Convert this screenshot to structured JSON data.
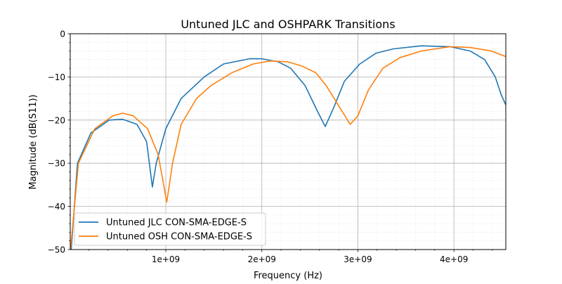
{
  "chart_data": {
    "type": "line",
    "title": "Untuned JLC and OSHPARK Transitions",
    "xlabel": "Frequency (Hz)",
    "ylabel": "Magnitude (dB(S11))",
    "xlim": [
      5000000.0,
      4540000000.0
    ],
    "ylim": [
      -50,
      0
    ],
    "grid": "major and minor",
    "legend_position": "lower-left",
    "x_ticks": [
      1000000000.0,
      2000000000.0,
      3000000000.0,
      4000000000.0
    ],
    "x_tick_labels": [
      "1e+09",
      "2e+09",
      "3e+09",
      "4e+09"
    ],
    "y_ticks": [
      -50,
      -40,
      -30,
      -20,
      -10,
      0
    ],
    "y_tick_labels": [
      "−50",
      "−40",
      "−30",
      "−20",
      "−10",
      "0"
    ],
    "series": [
      {
        "name": "Untuned JLC CON-SMA-EDGE-S",
        "color": "#1f77b4",
        "x": [
          15000000.0,
          80000000.0,
          220000000.0,
          410000000.0,
          550000000.0,
          700000000.0,
          800000000.0,
          860000000.0,
          900000000.0,
          1000000000.0,
          1160000000.0,
          1400000000.0,
          1600000000.0,
          1870000000.0,
          2000000000.0,
          2170000000.0,
          2300000000.0,
          2450000000.0,
          2580000000.0,
          2660000000.0,
          2750000000.0,
          2860000000.0,
          3020000000.0,
          3190000000.0,
          3370000000.0,
          3660000000.0,
          3960000000.0,
          4170000000.0,
          4320000000.0,
          4430000000.0,
          4490000000.0,
          4540000000.0
        ],
        "y": [
          -50,
          -30,
          -23,
          -20,
          -19.8,
          -21,
          -25,
          -35.5,
          -30,
          -22,
          -15,
          -10,
          -7,
          -5.8,
          -5.8,
          -6.5,
          -8,
          -12,
          -18,
          -21.5,
          -17,
          -11,
          -7,
          -4.5,
          -3.5,
          -2.8,
          -3,
          -4,
          -6,
          -10,
          -14,
          -16.5
        ]
      },
      {
        "name": "Untuned OSH CON-SMA-EDGE-S",
        "color": "#ff7f0e",
        "x": [
          8000000.0,
          90000000.0,
          260000000.0,
          450000000.0,
          550000000.0,
          660000000.0,
          810000000.0,
          920000000.0,
          1010000000.0,
          1070000000.0,
          1160000000.0,
          1320000000.0,
          1470000000.0,
          1690000000.0,
          1910000000.0,
          2090000000.0,
          2270000000.0,
          2420000000.0,
          2560000000.0,
          2670000000.0,
          2780000000.0,
          2920000000.0,
          3000000000.0,
          3110000000.0,
          3260000000.0,
          3440000000.0,
          3660000000.0,
          3960000000.0,
          4170000000.0,
          4390000000.0,
          4540000000.0
        ],
        "y": [
          -50,
          -30,
          -22,
          -19,
          -18.4,
          -19,
          -22,
          -28,
          -39,
          -30,
          -21,
          -15,
          -12,
          -9,
          -7,
          -6.3,
          -6.5,
          -7.5,
          -9,
          -12,
          -16,
          -21,
          -19,
          -13,
          -8,
          -5.5,
          -4,
          -3,
          -3.2,
          -4,
          -5.3
        ]
      }
    ]
  }
}
